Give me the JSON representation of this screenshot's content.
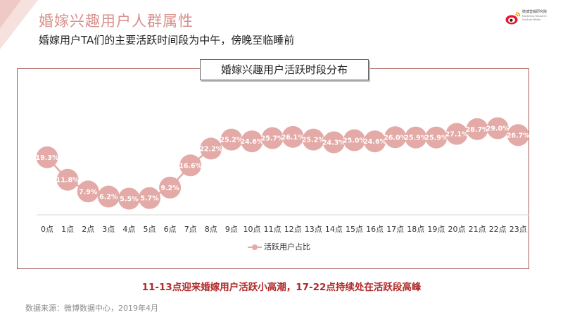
{
  "page": {
    "title": "婚嫁兴趣用户人群属性",
    "subtitle": "婚嫁用户TA们的主要活跃时间段为中午，傍晚至临睡前",
    "highlight": "11-13点迎来婚嫁用户活跃小高潮，17-22点持续处在活跃段高峰",
    "source": "数据来源：微博数据中心，2019年4月"
  },
  "logo": {
    "name_cn": "微博营销研究院",
    "name_en_1": "Marketing Research",
    "name_en_2": "Institute Weibo"
  },
  "colors": {
    "accent": "#d9908c",
    "marker": "#e3aaa7",
    "frame": "#a55a55",
    "highlight": "#b02a2a"
  },
  "chart_data": {
    "type": "line",
    "title": "婚嫁兴趣用户活跃时段分布",
    "categories": [
      "0点",
      "1点",
      "2点",
      "3点",
      "4点",
      "5点",
      "6点",
      "7点",
      "8点",
      "9点",
      "10点",
      "11点",
      "12点",
      "13点",
      "14点",
      "15点",
      "16点",
      "17点",
      "18点",
      "19点",
      "20点",
      "21点",
      "22点",
      "23点"
    ],
    "series": [
      {
        "name": "活跃用户占比",
        "values": [
          19.3,
          11.8,
          7.9,
          6.2,
          5.5,
          5.7,
          9.2,
          16.6,
          22.2,
          25.2,
          24.6,
          25.7,
          26.1,
          25.2,
          24.3,
          25.0,
          24.6,
          26.0,
          25.9,
          25.9,
          27.1,
          28.7,
          29.0,
          26.7
        ],
        "labels": [
          "19.3%",
          "11.8%",
          "7.9%",
          "6.2%",
          "5.5%",
          "5.7%",
          "9.2%",
          "16.6%",
          "22.2%",
          "25.2%",
          "24.6%",
          "25.7%",
          "26.1%",
          "25.2%",
          "24.3%",
          "25.0%",
          "24.6%",
          "26.0%",
          "25.9%",
          "25.9%",
          "27.1%",
          "28.7%",
          "29.0%",
          "26.7%"
        ]
      }
    ],
    "grid": false,
    "legend": "bottom"
  }
}
